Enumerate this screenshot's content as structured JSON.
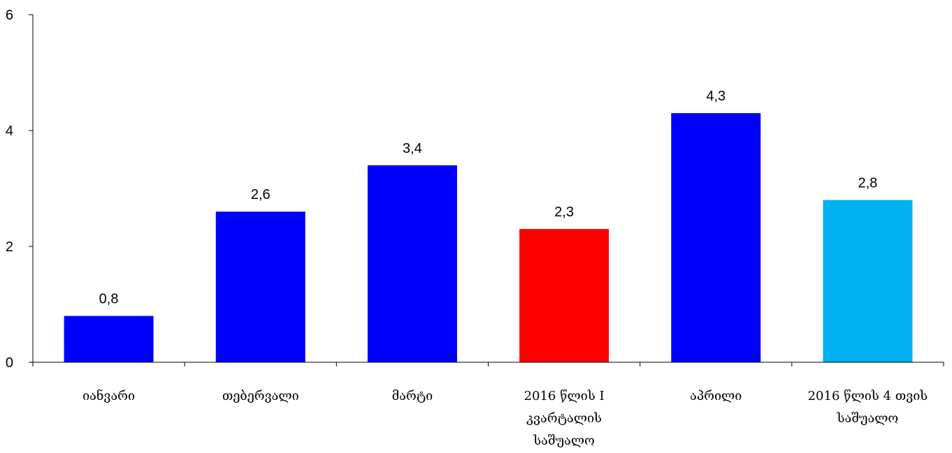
{
  "chart_data": {
    "type": "bar",
    "categories": [
      [
        "იანვარი"
      ],
      [
        "თებერვალი"
      ],
      [
        "მარტი"
      ],
      [
        "2016 წლის I",
        "კვარტალის",
        "საშუალო"
      ],
      [
        "აპრილი"
      ],
      [
        "2016 წლის 4 თვის",
        "საშუალო"
      ]
    ],
    "values": [
      0.8,
      2.6,
      3.4,
      2.3,
      4.3,
      2.8
    ],
    "value_labels": [
      "0,8",
      "2,6",
      "3,4",
      "2,3",
      "4,3",
      "2,8"
    ],
    "bar_colors": [
      "#0000FF",
      "#0000FF",
      "#0000FF",
      "#FF0000",
      "#0000FF",
      "#00B0F0"
    ],
    "yticks": [
      0,
      2,
      4,
      6
    ],
    "ylim": [
      0,
      6
    ],
    "grid": false,
    "legend": "none"
  }
}
